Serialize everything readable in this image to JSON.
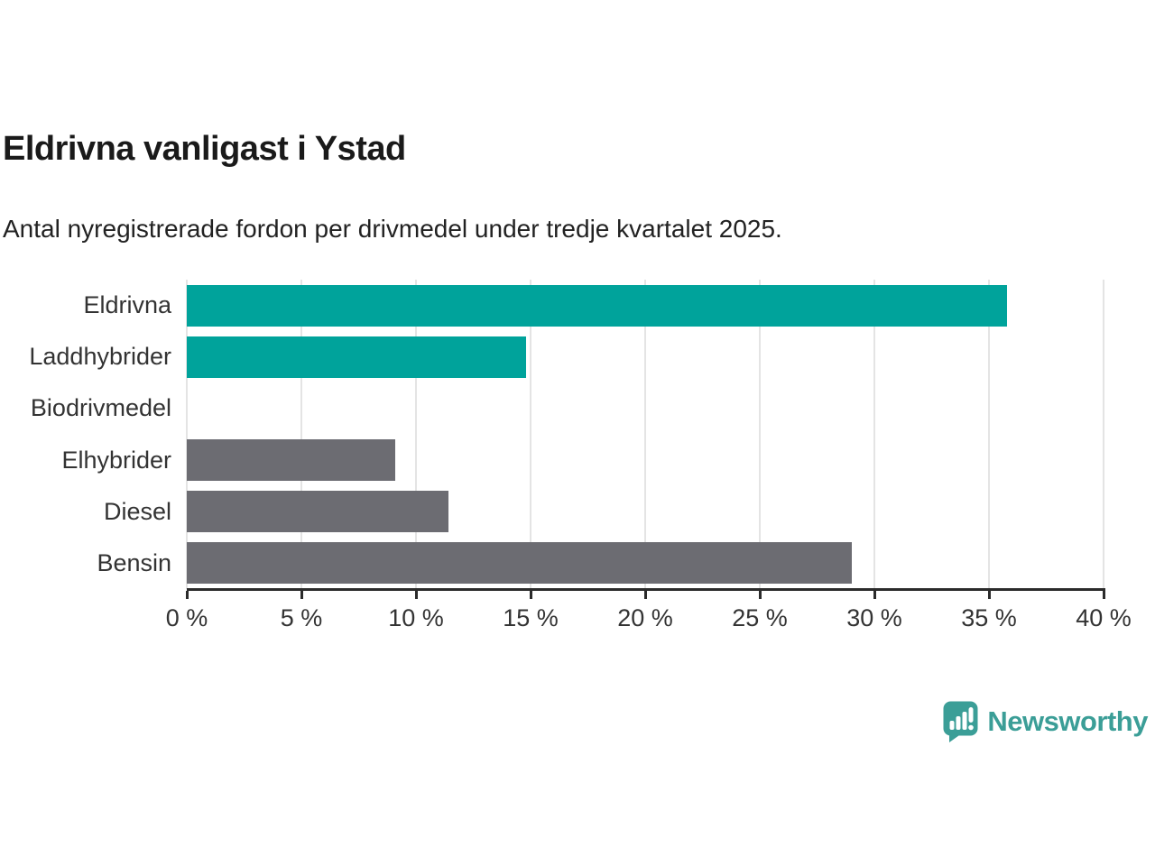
{
  "header": {
    "title": "Eldrivna vanligast i Ystad",
    "subtitle": "Antal nyregistrerade fordon per drivmedel under tredje kvartalet 2025."
  },
  "chart_data": {
    "type": "bar",
    "orientation": "horizontal",
    "title": "Eldrivna vanligast i Ystad",
    "subtitle": "Antal nyregistrerade fordon per drivmedel under tredje kvartalet 2025.",
    "categories": [
      "Eldrivna",
      "Laddhybrider",
      "Biodrivmedel",
      "Elhybrider",
      "Diesel",
      "Bensin"
    ],
    "values": [
      35.8,
      14.8,
      0,
      9.1,
      11.4,
      29.0
    ],
    "bar_colors": [
      "#00a39b",
      "#00a39b",
      "#00a39b",
      "#6c6c72",
      "#6c6c72",
      "#6c6c72"
    ],
    "unit": "%",
    "xlabel": "",
    "ylabel": "",
    "xlim": [
      0,
      40
    ],
    "grid": true,
    "legend": "none",
    "ticks": [
      {
        "value": 0,
        "label": "0 %"
      },
      {
        "value": 5,
        "label": "5 %"
      },
      {
        "value": 10,
        "label": "10 %"
      },
      {
        "value": 15,
        "label": "15 %"
      },
      {
        "value": 20,
        "label": "20 %"
      },
      {
        "value": 25,
        "label": "25 %"
      },
      {
        "value": 30,
        "label": "30 %"
      },
      {
        "value": 35,
        "label": "35 %"
      },
      {
        "value": 40,
        "label": "40 %"
      }
    ]
  },
  "colors": {
    "accent": "#00a39b",
    "neutral": "#6c6c72",
    "brand": "#3b9e97",
    "grid": "#e4e4e4",
    "axis": "#2b2b2b",
    "text": "#333333",
    "title": "#1a1a1a"
  },
  "footer": {
    "brand": "Newsworthy"
  }
}
